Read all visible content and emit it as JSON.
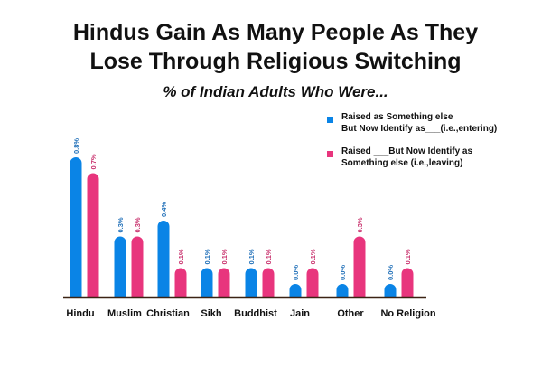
{
  "chart_data": {
    "type": "bar",
    "title": "Hindus Gain As Many People As They Lose Through Religious Switching",
    "title_lines": [
      "Hindus Gain As Many People As They",
      "Lose Through Religious Switching"
    ],
    "subtitle": "% of Indian Adults Who Were...",
    "categories": [
      "Hindu",
      "Muslim",
      "Christian",
      "Sikh",
      "Buddhist",
      "Jain",
      "Other",
      "No Religion"
    ],
    "series": [
      {
        "name": "Raised as Something else But Now Identify as___(i.e.,entering)",
        "legend_lines": [
          "Raised as Something else",
          "But Now Identify as___(i.e.,entering)"
        ],
        "color": "#0a84e6",
        "values": [
          0.8,
          0.3,
          0.4,
          0.1,
          0.1,
          0.0,
          0.0,
          0.0
        ],
        "labels": [
          "0.8%",
          "0.3%",
          "0.4%",
          "0.1%",
          "0.1%",
          "0.0%",
          "0.0%",
          "0.0%"
        ]
      },
      {
        "name": "Raised ___But Now Identify as Something else (i.e.,leaving)",
        "legend_lines": [
          "Raised ___But Now Identify as",
          "Something else (i.e.,leaving)"
        ],
        "color": "#e8357d",
        "values": [
          0.7,
          0.3,
          0.1,
          0.1,
          0.1,
          0.1,
          0.3,
          0.1
        ],
        "labels": [
          "0.7%",
          "0.3%",
          "0.1%",
          "0.1%",
          "0.1%",
          "0.1%",
          "0.3%",
          "0.1%"
        ]
      }
    ],
    "legend": "top-right",
    "grid": false
  }
}
